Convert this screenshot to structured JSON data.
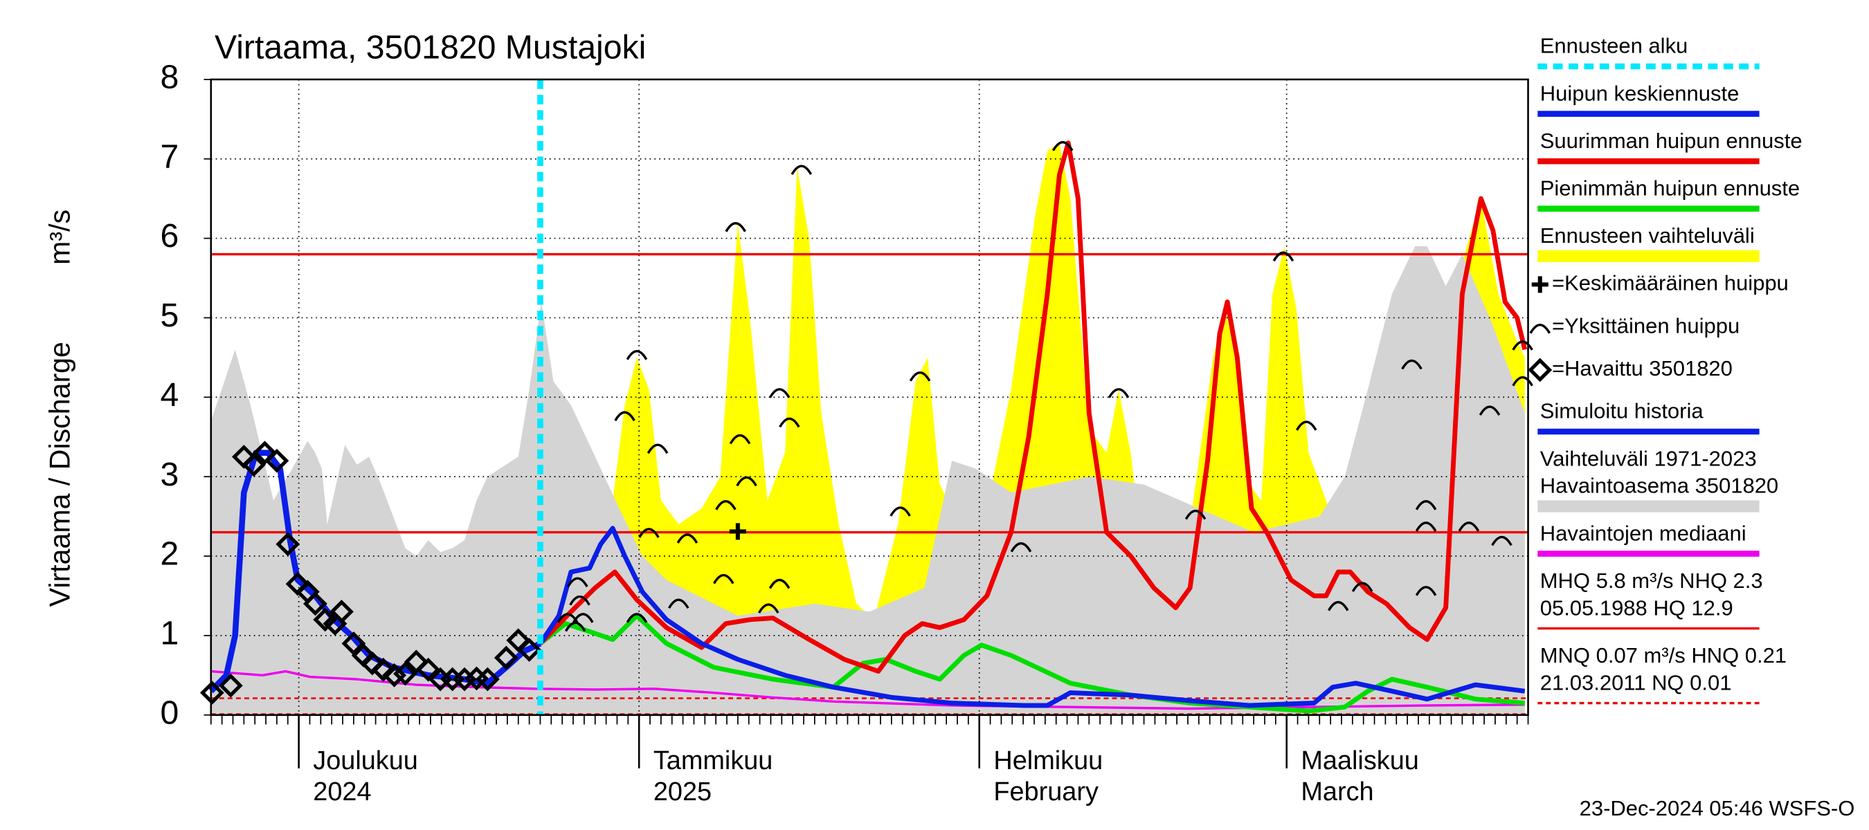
{
  "chart_data": {
    "type": "line",
    "title": "Virtaama, 3501820 Mustajoki",
    "ylabel": "Virtaama / Discharge",
    "yunit": "m³/s",
    "footer": "23-Dec-2024 05:46 WSFS-O",
    "xlim": [
      0,
      120
    ],
    "ylim": [
      0,
      8
    ],
    "yticks": [
      0,
      1,
      2,
      3,
      4,
      5,
      6,
      7,
      8
    ],
    "xticks": [
      {
        "value": 8,
        "label": "Joulukuu",
        "label2": "2024"
      },
      {
        "value": 39,
        "label": "Tammikuu",
        "label2": "2025"
      },
      {
        "value": 70,
        "label": "Helmikuu",
        "label2": "February"
      },
      {
        "value": 98,
        "label": "Maaliskuu",
        "label2": "March"
      }
    ],
    "grid": true,
    "forecast_start": {
      "x": 30,
      "label": "Ennusteen alku",
      "color": "#00e8ff"
    },
    "series": [
      {
        "name": "Huipun keskiennuste",
        "type": "line",
        "color": "#0a1ee6",
        "width": 4,
        "x": [
          30,
          31.7,
          32.8,
          34.5,
          35.5,
          36.6,
          37.7,
          39.3,
          41.5,
          44.7,
          48,
          52.3,
          56.7,
          62.1,
          67.5,
          74,
          76.2,
          78.3,
          83.8,
          89.2,
          94.6,
          100.5,
          102.2,
          104.3,
          107.6,
          110.8,
          115.2,
          119.7
        ],
        "values": [
          0.9,
          1.25,
          1.8,
          1.85,
          2.15,
          2.35,
          2.0,
          1.55,
          1.2,
          0.9,
          0.7,
          0.5,
          0.35,
          0.22,
          0.15,
          0.12,
          0.12,
          0.28,
          0.25,
          0.18,
          0.12,
          0.15,
          0.35,
          0.4,
          0.3,
          0.2,
          0.38,
          0.3
        ]
      },
      {
        "name": "Suurimman huipun ennuste",
        "type": "line",
        "color": "#ee0000",
        "width": 4,
        "x": [
          30,
          32.8,
          35,
          36.8,
          38.8,
          41.5,
          44.7,
          46.9,
          49.1,
          51.2,
          54.5,
          57.7,
          60.8,
          63.2,
          64.8,
          66.4,
          68.6,
          70.7,
          72.9,
          74.5,
          76.2,
          77.3,
          78.1,
          79,
          80,
          81.6,
          83.8,
          85.9,
          87.9,
          89.2,
          90.8,
          91.9,
          92.6,
          93.5,
          94.8,
          96.2,
          98.4,
          100.5,
          101.6,
          102.7,
          103.8,
          105.4,
          107.1,
          109.2,
          110.8,
          112.5,
          114,
          115.7,
          116.8,
          117.9,
          119,
          119.7
        ],
        "values": [
          0.9,
          1.3,
          1.6,
          1.8,
          1.45,
          1.1,
          0.85,
          1.15,
          1.2,
          1.22,
          0.95,
          0.7,
          0.55,
          1.0,
          1.15,
          1.1,
          1.2,
          1.5,
          2.3,
          3.5,
          5.3,
          6.8,
          7.2,
          6.5,
          3.8,
          2.3,
          2.0,
          1.6,
          1.35,
          1.6,
          3.2,
          4.8,
          5.2,
          4.5,
          2.6,
          2.3,
          1.7,
          1.5,
          1.5,
          1.8,
          1.8,
          1.55,
          1.4,
          1.1,
          0.95,
          1.35,
          5.3,
          6.5,
          6.1,
          5.2,
          5.0,
          4.6
        ]
      },
      {
        "name": "Pienimmän huipun ennuste",
        "type": "line",
        "color": "#00dd00",
        "width": 4,
        "x": [
          30,
          32.3,
          34.5,
          36.6,
          38.8,
          41.5,
          45.8,
          51.2,
          56.7,
          59.4,
          61.5,
          64.2,
          66.4,
          68.6,
          70.2,
          72.9,
          78.3,
          83.8,
          89.2,
          94.6,
          100,
          103.3,
          105.4,
          107.6,
          110.8,
          115.2,
          119.7
        ],
        "values": [
          0.9,
          1.15,
          1.05,
          0.95,
          1.25,
          0.9,
          0.6,
          0.45,
          0.35,
          0.65,
          0.7,
          0.55,
          0.45,
          0.75,
          0.88,
          0.75,
          0.4,
          0.25,
          0.15,
          0.1,
          0.05,
          0.1,
          0.3,
          0.45,
          0.35,
          0.2,
          0.15
        ]
      },
      {
        "name": "Ennusteen vaihteluväli",
        "type": "area",
        "color": "#ffff00",
        "x": [
          30,
          31.7,
          33.9,
          35.5,
          36.6,
          37.7,
          38.8,
          39.9,
          41,
          42.6,
          44.7,
          46.4,
          48,
          49.1,
          50.7,
          52.3,
          53.4,
          54.5,
          55.6,
          57.2,
          58.8,
          60.4,
          62.6,
          64.2,
          65.3,
          66.4,
          68.6,
          70.7,
          72.9,
          75.1,
          76.2,
          77.3,
          78.3,
          80,
          81.6,
          82.7,
          83.8,
          84.8,
          87,
          89.2,
          91.3,
          92.4,
          93.5,
          94.6,
          95.7,
          96.7,
          97.8,
          98.9,
          100,
          101.6,
          103.3,
          105.4,
          107.6,
          109.2,
          110.8,
          112.5,
          114,
          115.7,
          117.3,
          119,
          119.7
        ],
        "values": [
          0.87,
          1.24,
          1.5,
          2.4,
          2.7,
          3.9,
          4.5,
          4.1,
          2.7,
          2.4,
          2.6,
          3.0,
          6.2,
          5.0,
          2.7,
          3.3,
          6.9,
          6.0,
          3.8,
          2.4,
          1.4,
          1.2,
          2.4,
          4.2,
          4.5,
          2.9,
          2.3,
          2.6,
          4.1,
          6.3,
          7.1,
          7.2,
          6.5,
          3.6,
          3.3,
          4.1,
          3.3,
          2.1,
          2.0,
          2.4,
          4.5,
          5.1,
          4.5,
          2.9,
          2.7,
          5.3,
          5.9,
          5.1,
          3.3,
          2.7,
          2.1,
          2.1,
          2.7,
          4.5,
          3.2,
          2.4,
          5.7,
          6.5,
          5.3,
          4.7,
          4.5
        ]
      },
      {
        "name": "=Keskimääräinen huippu",
        "type": "scatter",
        "marker": "plus",
        "color": "#000000",
        "x": [
          48
        ],
        "values": [
          2.31
        ]
      },
      {
        "name": "=Yksittäinen huippu",
        "type": "scatter",
        "marker": "arc",
        "color": "#000000",
        "x": [
          33.4,
          33.6,
          33.9,
          32.5,
          33.2,
          37.7,
          38.8,
          40.7,
          39.9,
          38.8,
          43.4,
          42.6,
          46.9,
          48.2,
          48.8,
          51.8,
          52.7,
          46.7,
          51.8,
          50.8,
          47.8,
          53.8,
          62.8,
          64.6,
          73.8,
          77.6,
          82.7,
          89.7,
          97.7,
          99.8,
          102.7,
          104.9,
          109.4,
          110.7,
          110.7,
          110.7,
          114.6,
          116.5,
          117.6,
          119.5,
          119.5
        ],
        "values": [
          1.69,
          1.46,
          1.24,
          1.24,
          1.13,
          3.78,
          4.55,
          3.37,
          2.31,
          1.24,
          2.24,
          1.42,
          2.66,
          3.49,
          2.96,
          4.07,
          3.7,
          1.73,
          1.67,
          1.36,
          6.16,
          6.88,
          2.58,
          4.28,
          2.13,
          7.18,
          4.07,
          2.54,
          5.79,
          3.66,
          1.39,
          1.63,
          4.43,
          2.66,
          2.39,
          1.58,
          2.39,
          3.85,
          2.21,
          4.67,
          4.22
        ]
      },
      {
        "name": "=Havaittu 3501820",
        "type": "scatter",
        "marker": "diamond",
        "color": "#000000",
        "x": [
          0.1,
          1.8,
          3,
          3.9,
          4.9,
          6,
          7,
          7.9,
          8.8,
          9.5,
          10.4,
          11.3,
          11.9,
          13,
          13.9,
          14.7,
          15.7,
          16.7,
          17.7,
          18.7,
          19.8,
          20.9,
          22,
          23.1,
          24.2,
          25.2,
          26.9,
          28,
          29
        ],
        "values": [
          0.28,
          0.37,
          3.25,
          3.15,
          3.3,
          3.2,
          2.15,
          1.65,
          1.55,
          1.4,
          1.2,
          1.15,
          1.3,
          0.9,
          0.75,
          0.65,
          0.57,
          0.5,
          0.52,
          0.67,
          0.57,
          0.45,
          0.45,
          0.45,
          0.46,
          0.45,
          0.72,
          0.94,
          0.82
        ]
      },
      {
        "name": "Simuloitu historia",
        "type": "line",
        "color": "#0a1ee6",
        "width": 5,
        "x": [
          0,
          1.4,
          2.2,
          3,
          4.1,
          5.2,
          6.3,
          7.2,
          7.9,
          9.5,
          11.2,
          12.8,
          14.4,
          16.6,
          19.8,
          23.1,
          25.2,
          26.9,
          28.5,
          30
        ],
        "values": [
          0.3,
          0.5,
          1.0,
          2.8,
          3.3,
          3.3,
          3.1,
          2.2,
          1.7,
          1.5,
          1.2,
          1.0,
          0.75,
          0.6,
          0.5,
          0.45,
          0.4,
          0.6,
          0.8,
          0.9
        ]
      },
      {
        "name": [
          "Vaihteluväli 1971-2023",
          " Havaintoasema 3501820"
        ],
        "type": "area",
        "color": "#d4d4d4",
        "x": [
          0,
          2.2,
          3.6,
          5.7,
          7.4,
          8.8,
          9.5,
          10.1,
          10.6,
          12.2,
          13.3,
          14.4,
          15.5,
          16.6,
          17.7,
          18.7,
          19.8,
          20.9,
          22,
          23.1,
          24.2,
          25.2,
          26.3,
          28,
          29,
          30.1,
          31.2,
          32.8,
          35,
          37.2,
          39.3,
          41.5,
          48,
          55,
          60,
          65,
          67.5,
          69.7,
          72.9,
          80,
          85,
          90,
          95,
          101,
          103.3,
          105.4,
          107.6,
          109.7,
          110.8,
          112.5,
          114,
          116.8,
          119.7
        ],
        "values": [
          3.7,
          4.6,
          3.9,
          2.7,
          3.1,
          3.45,
          3.3,
          3.1,
          2.4,
          3.4,
          3.15,
          3.25,
          2.9,
          2.5,
          2.1,
          2.0,
          2.2,
          2.05,
          2.1,
          2.2,
          2.7,
          3.0,
          3.1,
          3.25,
          4.1,
          5.2,
          4.2,
          3.9,
          3.25,
          2.6,
          2.0,
          1.7,
          1.25,
          1.4,
          1.3,
          1.6,
          3.2,
          3.1,
          2.8,
          3.0,
          2.9,
          2.6,
          2.3,
          2.5,
          3.0,
          4.1,
          5.3,
          5.9,
          5.9,
          5.4,
          5.8,
          4.9,
          3.8
        ]
      },
      {
        "name": "Havaintojen mediaani",
        "type": "line",
        "color": "#ee00ee",
        "width": 2,
        "x": [
          0,
          4.7,
          6.8,
          9,
          13.3,
          18.7,
          24.2,
          29.6,
          35,
          40.4,
          45.8,
          51.2,
          56.7,
          67.5,
          78.3,
          89.2,
          100,
          110.8,
          119.7
        ],
        "values": [
          0.55,
          0.5,
          0.55,
          0.48,
          0.45,
          0.38,
          0.35,
          0.33,
          0.32,
          0.33,
          0.28,
          0.22,
          0.17,
          0.12,
          0.1,
          0.08,
          0.1,
          0.12,
          0.13
        ]
      }
    ],
    "reference_lines": [
      {
        "label": [
          "MHQ  5.8 m³/s NHQ  2.3",
          "05.05.1988 HQ 12.9"
        ],
        "values": [
          5.8,
          2.3
        ],
        "color": "#ee0000",
        "dashed": false
      },
      {
        "label": [
          "MNQ 0.07 m³/s HNQ 0.21",
          "21.03.2011 NQ 0.01"
        ],
        "values": [
          0.21,
          0.01
        ],
        "color": "#ee0000",
        "dashed": true
      }
    ]
  }
}
